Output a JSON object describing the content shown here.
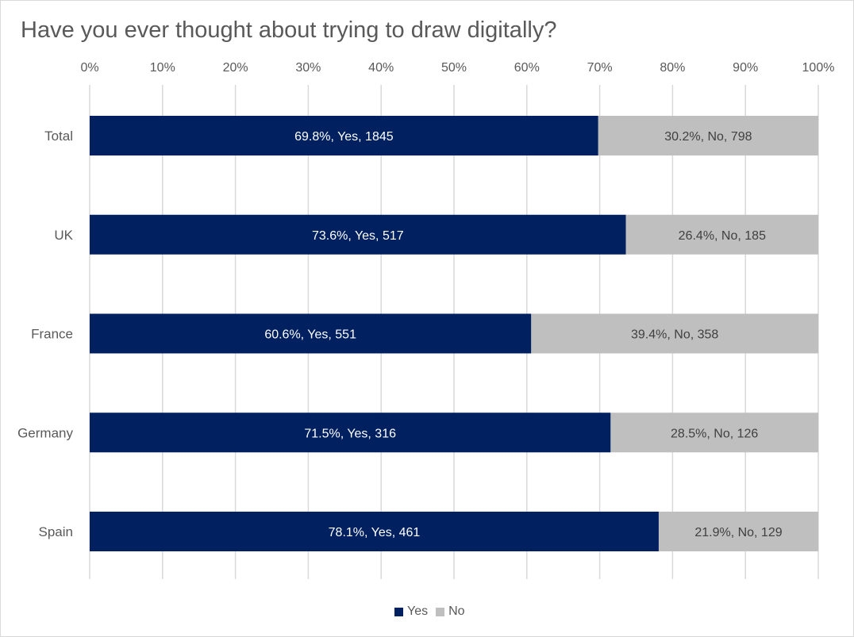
{
  "chart_data": {
    "type": "bar",
    "orientation": "horizontal",
    "stacked": true,
    "title": "Have you ever thought about trying to draw digitally?",
    "xlabel": "",
    "ylabel": "",
    "xlim": [
      0,
      100
    ],
    "x_ticks": [
      "0%",
      "10%",
      "20%",
      "30%",
      "40%",
      "50%",
      "60%",
      "70%",
      "80%",
      "90%",
      "100%"
    ],
    "grid": true,
    "legend_position": "bottom",
    "categories": [
      "Total",
      "UK",
      "France",
      "Germany",
      "Spain"
    ],
    "series": [
      {
        "name": "Yes",
        "color": "#002060",
        "label_color": "#ffffff",
        "values": [
          69.8,
          73.6,
          60.6,
          71.5,
          78.1
        ],
        "labels": [
          "69.8%, Yes, 1845",
          "73.6%, Yes, 517",
          "60.6%, Yes, 551",
          "71.5%, Yes, 316",
          "78.1%, Yes, 461"
        ]
      },
      {
        "name": "No",
        "color": "#bfbfbf",
        "label_color": "#404040",
        "values": [
          30.2,
          26.4,
          39.4,
          28.5,
          21.9
        ],
        "labels": [
          "30.2%, No, 798",
          "26.4%, No, 185",
          "39.4%, No, 358",
          "28.5%, No, 126",
          "21.9%, No, 129"
        ]
      }
    ]
  }
}
